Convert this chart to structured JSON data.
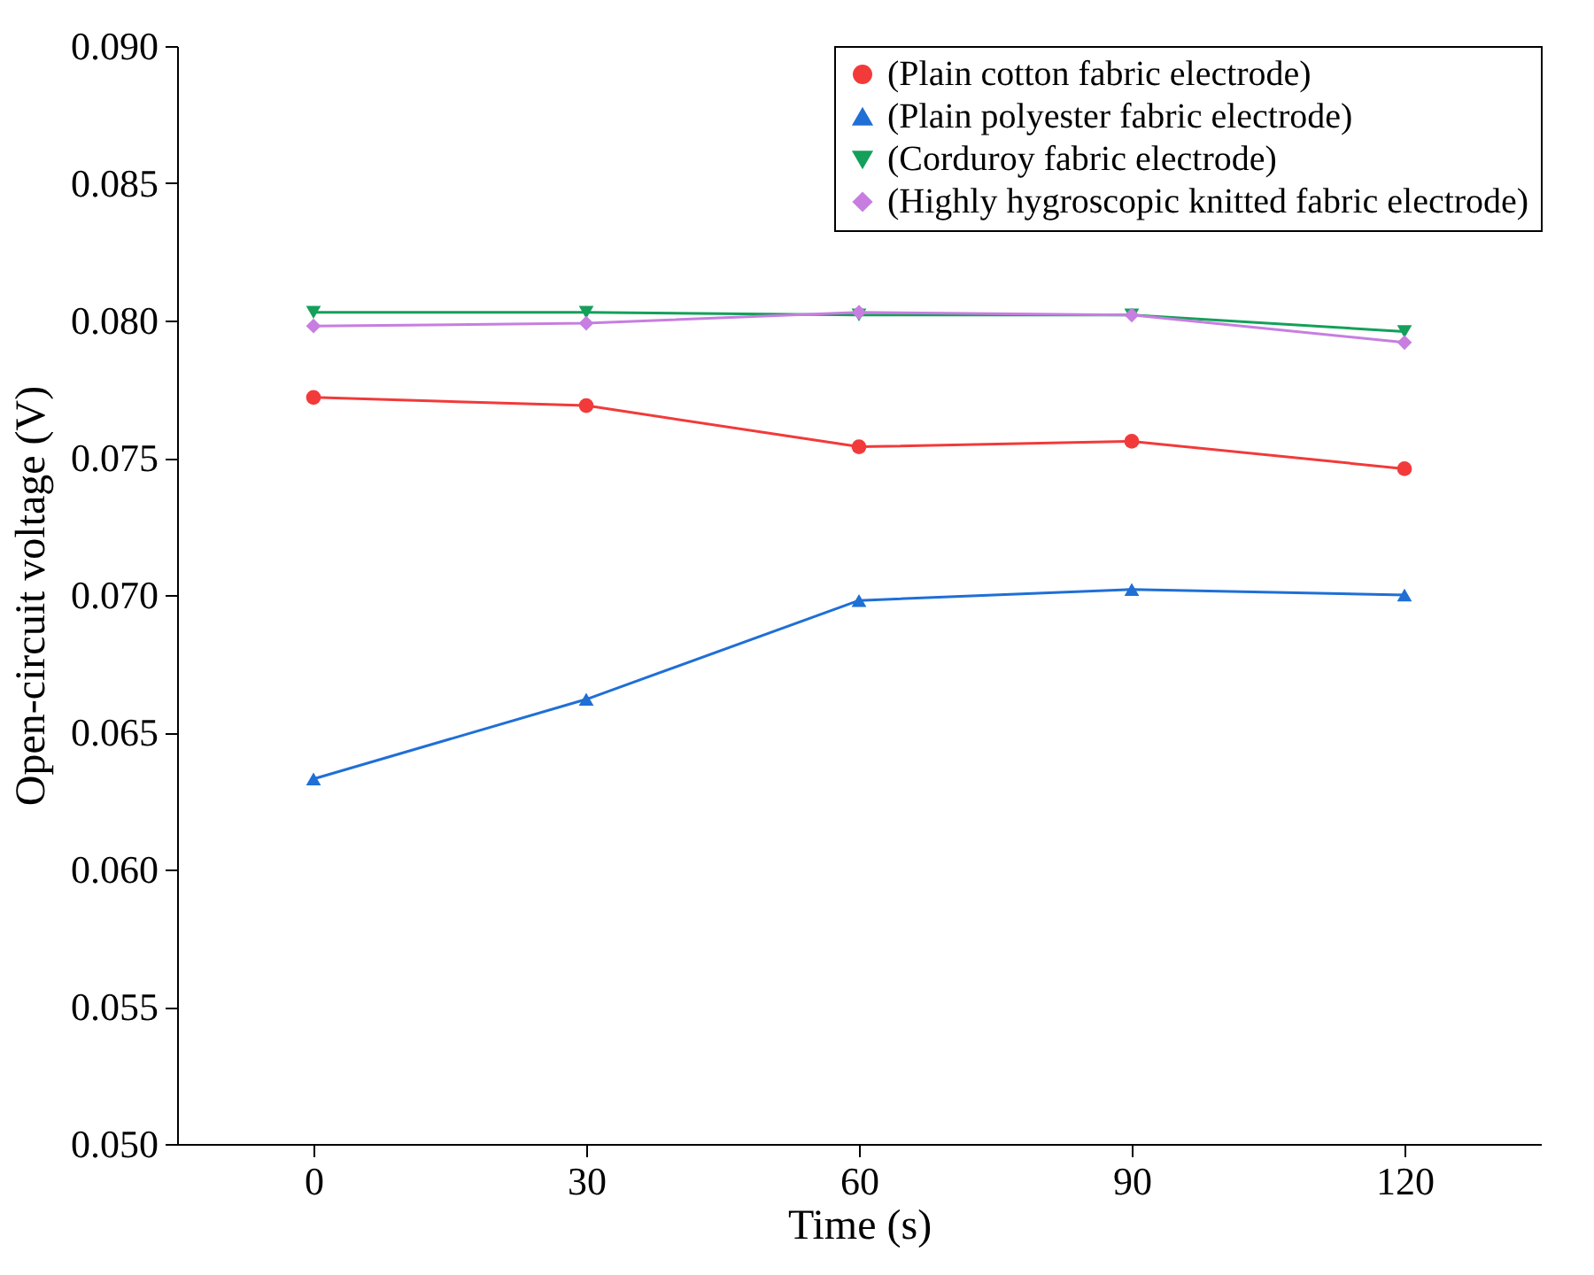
{
  "chart_data": {
    "type": "line",
    "xlabel": "Time (s)",
    "ylabel": "Open-circuit voltage (V)",
    "x": [
      0,
      30,
      60,
      90,
      120
    ],
    "xlim": [
      -15,
      135
    ],
    "xticks": [
      0,
      30,
      60,
      90,
      120
    ],
    "ylim": [
      0.05,
      0.09
    ],
    "yticks": [
      {
        "value": 0.05,
        "label": "0.050"
      },
      {
        "value": 0.055,
        "label": "0.055"
      },
      {
        "value": 0.06,
        "label": "0.060"
      },
      {
        "value": 0.065,
        "label": "0.065"
      },
      {
        "value": 0.07,
        "label": "0.070"
      },
      {
        "value": 0.075,
        "label": "0.075"
      },
      {
        "value": 0.08,
        "label": "0.080"
      },
      {
        "value": 0.085,
        "label": "0.085"
      },
      {
        "value": 0.09,
        "label": "0.090"
      }
    ],
    "series": [
      {
        "name": "(Plain cotton fabric electrode)",
        "color": "#f23a3a",
        "marker": "circle",
        "values": [
          0.0772,
          0.0769,
          0.0754,
          0.0756,
          0.0746
        ]
      },
      {
        "name": "(Plain polyester fabric electrode)",
        "color": "#1f6fd6",
        "marker": "triangle",
        "values": [
          0.0633,
          0.0662,
          0.0698,
          0.0702,
          0.07
        ]
      },
      {
        "name": "(Corduroy fabric electrode)",
        "color": "#14a05a",
        "marker": "triangle-down",
        "values": [
          0.0803,
          0.0803,
          0.0802,
          0.0802,
          0.0796
        ]
      },
      {
        "name": "(Highly hygroscopic knitted fabric electrode)",
        "color": "#c77ee0",
        "marker": "diamond",
        "values": [
          0.0798,
          0.0799,
          0.0803,
          0.0802,
          0.0792
        ]
      }
    ],
    "legend": "top right",
    "grid": false,
    "line_style": "solid"
  }
}
